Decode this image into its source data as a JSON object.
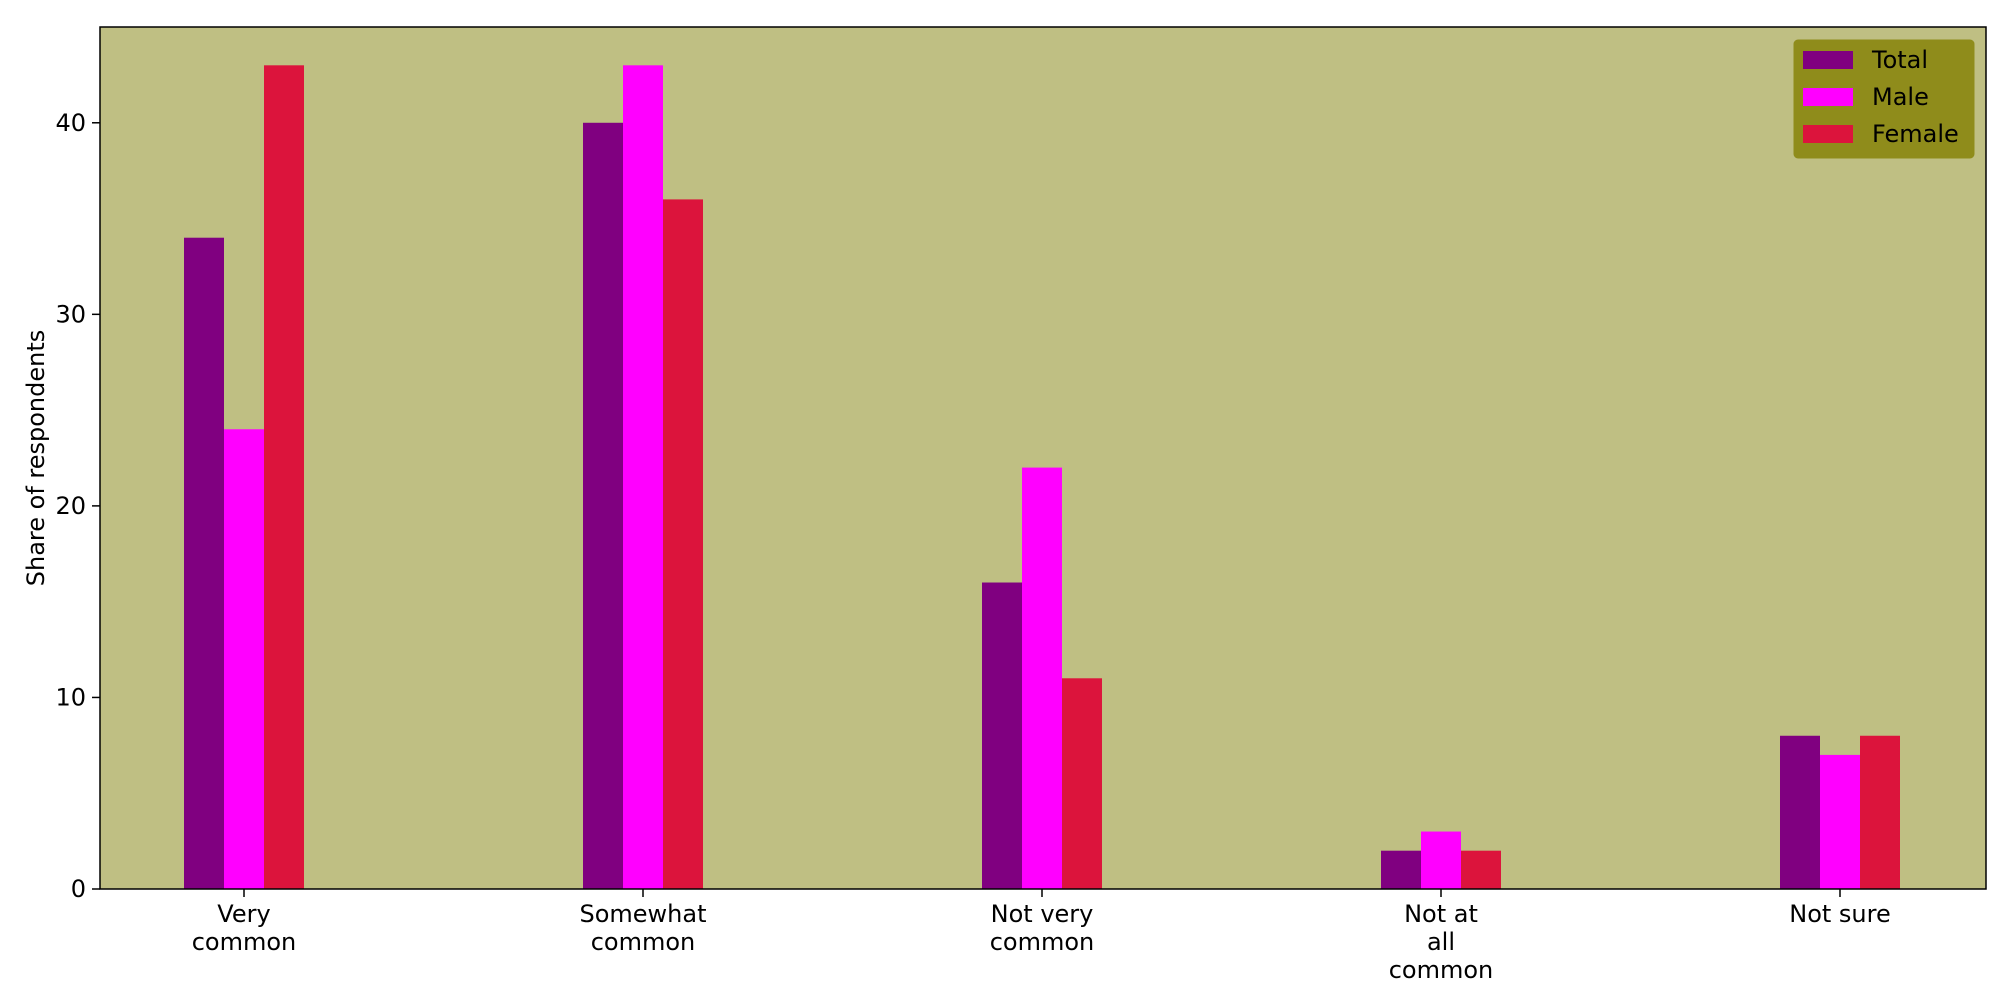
{
  "chart_data": {
    "type": "bar",
    "title": "",
    "xlabel": "",
    "ylabel": "Share of respondents",
    "ylim": [
      0,
      45
    ],
    "yticks": [
      0,
      10,
      20,
      30,
      40
    ],
    "grid": false,
    "legend_placement": "top-right",
    "categories": [
      [
        "Very",
        "common"
      ],
      [
        "Somewhat",
        "common"
      ],
      [
        "Not very",
        "common"
      ],
      [
        "Not at",
        "all",
        "common"
      ],
      [
        "Not sure"
      ]
    ],
    "series": [
      {
        "name": "Total",
        "color": "#800080",
        "values": [
          34,
          40,
          16,
          2,
          8
        ]
      },
      {
        "name": "Male",
        "color": "#ff00ff",
        "values": [
          24,
          43,
          22,
          3,
          7
        ]
      },
      {
        "name": "Female",
        "color": "#dc143c",
        "values": [
          43,
          36,
          11,
          2,
          8
        ]
      }
    ],
    "colors": {
      "plot_background": "#bfbf83",
      "legend_background": "#8f8c1b"
    }
  }
}
